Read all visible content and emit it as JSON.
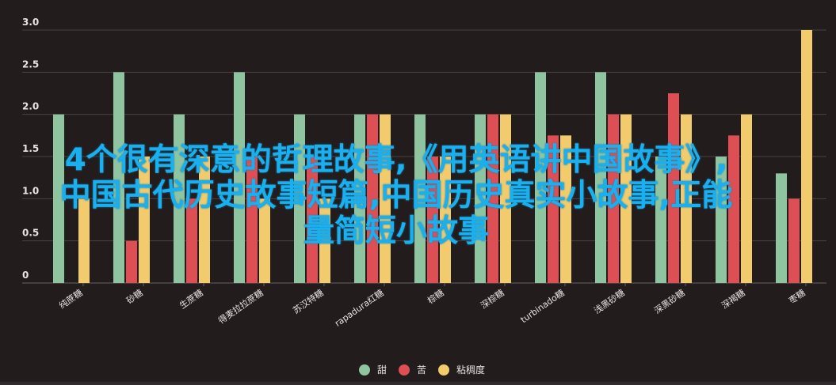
{
  "chart_data": {
    "type": "bar",
    "categories": [
      "纯蔗糖",
      "砂糖",
      "生蔗糖",
      "得麦拉拉蔗糖",
      "苏汉特糖",
      "rapadura红糖",
      "棕糖",
      "深棕糖",
      "turbinado糖",
      "浅黑砂糖",
      "深黑砂糖",
      "深褐糖",
      "枣糖"
    ],
    "series": [
      {
        "name": "甜",
        "color": "#8fc4a0",
        "values": [
          2,
          2.5,
          2,
          2.5,
          2,
          2,
          2,
          2,
          2.5,
          2.5,
          1.5,
          1.5,
          1.3
        ]
      },
      {
        "name": "苦",
        "color": "#dd4f55",
        "values": [
          0,
          0.5,
          1,
          1.5,
          1.5,
          2,
          1.5,
          2,
          1.75,
          2,
          2.25,
          1.75,
          1
        ]
      },
      {
        "name": "粘稠度",
        "color": "#f2cb6c",
        "values": [
          1,
          1.5,
          1.5,
          1,
          1,
          2,
          1.5,
          2,
          1.75,
          2,
          2,
          2,
          3
        ]
      }
    ],
    "yticks": [
      "0",
      "0.5",
      "1.0",
      "1.5",
      "2.0",
      "2.5",
      "3.0"
    ],
    "ylim": [
      0,
      3
    ],
    "grid": true,
    "legend_position": "bottom"
  },
  "overlay": {
    "lines": [
      "4个很有深意的哲理故事,《用英语讲中国故事》,",
      "中国古代历史故事短篇,中国历史真实小故事,正能",
      "量简短小故事"
    ]
  }
}
